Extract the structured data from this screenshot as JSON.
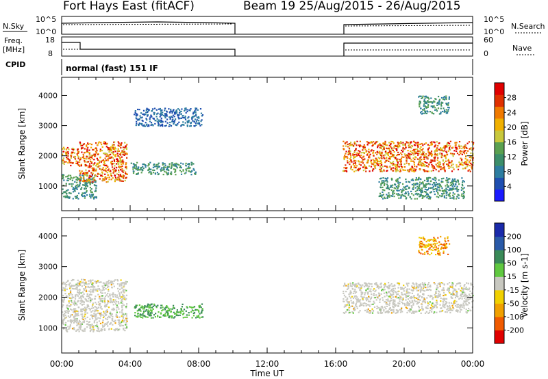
{
  "header": {
    "station": "Fort Hays East (fitACF)",
    "beam_date": "Beam 19  25/Aug/2015 - 26/Aug/2015"
  },
  "labels": {
    "nsky": "N.Sky",
    "nsearch": "N.Search",
    "freq": "Freq.",
    "freq_unit": "[MHz]",
    "nave": "Nave",
    "cpid": "CPID",
    "mode": "normal (fast) 151 IF"
  },
  "panel_ticks": {
    "noise_left": [
      "10^5",
      "10^0"
    ],
    "noise_right": [
      "10^5",
      "10^0"
    ],
    "freq_left": [
      "18",
      "8"
    ],
    "freq_right": [
      "60",
      "0"
    ]
  },
  "chart_data": [
    {
      "type": "heatmap",
      "name": "power",
      "ylabel": "Slant Range [km]",
      "yticks": [
        "1000",
        "2000",
        "3000",
        "4000"
      ],
      "colorbar_label": "Power [dB]",
      "colorbar_ticks": [
        "4",
        "8",
        "12",
        "16",
        "20",
        "24",
        "28"
      ],
      "xticks": [
        "00:00",
        "04:00",
        "08:00",
        "12:00",
        "16:00",
        "20:00",
        "00:00"
      ],
      "xlabel": "Time UT",
      "xlim_hours": [
        0,
        24
      ],
      "ylim_km": [
        180,
        4600
      ],
      "data_gap_hours": [
        10,
        16.4
      ],
      "bands": [
        {
          "t0": 0.0,
          "t1": 1.0,
          "r0": 1700,
          "r1": 2300,
          "level": "high"
        },
        {
          "t0": 0.0,
          "t1": 2.0,
          "r0": 600,
          "r1": 1400,
          "level": "mid"
        },
        {
          "t0": 1.0,
          "t1": 3.8,
          "r0": 1150,
          "r1": 2500,
          "level": "high"
        },
        {
          "t0": 4.0,
          "t1": 7.8,
          "r0": 1400,
          "r1": 1800,
          "level": "mid"
        },
        {
          "t0": 4.2,
          "t1": 8.2,
          "r0": 3000,
          "r1": 3600,
          "level": "low"
        },
        {
          "t0": 16.4,
          "t1": 24.0,
          "r0": 1500,
          "r1": 2500,
          "level": "high"
        },
        {
          "t0": 20.8,
          "t1": 22.6,
          "r0": 3400,
          "r1": 4000,
          "level": "mid"
        },
        {
          "t0": 18.5,
          "t1": 23.5,
          "r0": 600,
          "r1": 1300,
          "level": "mid"
        }
      ]
    },
    {
      "type": "heatmap",
      "name": "velocity",
      "ylabel": "Slant Range [km]",
      "yticks": [
        "1000",
        "2000",
        "3000",
        "4000"
      ],
      "colorbar_label": "Velocity [m s-1]",
      "colorbar_ticks": [
        "200",
        "100",
        "50",
        "15",
        "-15",
        "-50",
        "-100",
        "-200"
      ],
      "xticks": [
        "00:00",
        "04:00",
        "08:00",
        "12:00",
        "16:00",
        "20:00",
        "00:00"
      ],
      "xlabel": "Time UT",
      "xlim_hours": [
        0,
        24
      ],
      "ylim_km": [
        180,
        4600
      ],
      "data_gap_hours": [
        10,
        16.4
      ],
      "bands": [
        {
          "t0": 0.0,
          "t1": 3.8,
          "r0": 900,
          "r1": 2600,
          "level": "ground"
        },
        {
          "t0": 4.2,
          "t1": 8.2,
          "r0": 1350,
          "r1": 1800,
          "level": "positive"
        },
        {
          "t0": 16.4,
          "t1": 24.0,
          "r0": 1500,
          "r1": 2500,
          "level": "ground"
        },
        {
          "t0": 20.8,
          "t1": 22.6,
          "r0": 3400,
          "r1": 4000,
          "level": "negative"
        }
      ]
    }
  ],
  "colors": {
    "power_scale": [
      "#1a1aff",
      "#1f4fb0",
      "#2d7da0",
      "#3c8e6a",
      "#5aa050",
      "#c8c83c",
      "#f0b000",
      "#f07a00",
      "#e03000",
      "#e00000"
    ],
    "velocity_scale": [
      "#e00000",
      "#f05a00",
      "#f0a000",
      "#f0d000",
      "#c8c8c0",
      "#60c840",
      "#3a8a58",
      "#2a5aa8",
      "#1a2aaa"
    ]
  }
}
